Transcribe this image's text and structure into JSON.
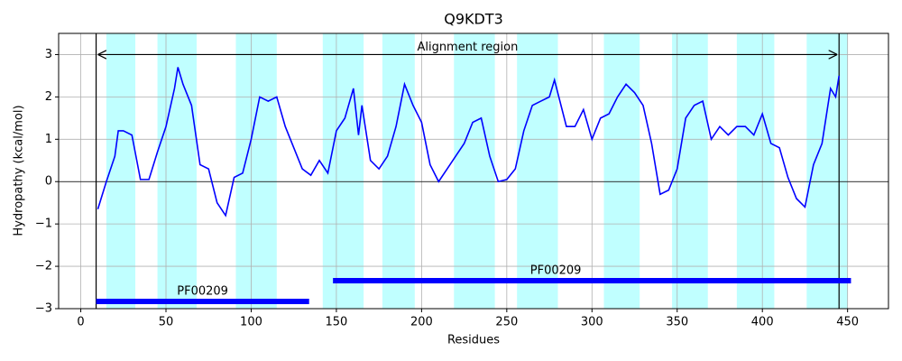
{
  "chart_data": {
    "type": "line",
    "title": "Q9KDT3",
    "x_label": "Residues",
    "y_label": "Hydropathy (kcal/mol)",
    "x": [
      10,
      15,
      20,
      22,
      25,
      30,
      35,
      40,
      45,
      50,
      55,
      57,
      60,
      65,
      70,
      75,
      80,
      85,
      90,
      95,
      100,
      105,
      110,
      115,
      120,
      125,
      130,
      135,
      140,
      145,
      150,
      155,
      160,
      163,
      165,
      170,
      175,
      180,
      185,
      190,
      195,
      200,
      205,
      210,
      215,
      220,
      225,
      230,
      235,
      240,
      245,
      250,
      255,
      260,
      265,
      270,
      275,
      278,
      285,
      290,
      295,
      300,
      305,
      310,
      315,
      320,
      325,
      330,
      335,
      340,
      345,
      350,
      355,
      360,
      365,
      370,
      375,
      380,
      385,
      390,
      395,
      400,
      405,
      410,
      415,
      420,
      425,
      430,
      435,
      440,
      443,
      445
    ],
    "series": [
      {
        "name": "Hydropathy",
        "color": "#0000ff",
        "values": [
          -0.65,
          0.0,
          0.6,
          1.2,
          1.2,
          1.1,
          0.05,
          0.05,
          0.7,
          1.3,
          2.2,
          2.7,
          2.3,
          1.8,
          0.4,
          0.3,
          -0.5,
          -0.8,
          0.1,
          0.2,
          1.0,
          2.0,
          1.9,
          2.0,
          1.3,
          0.8,
          0.3,
          0.15,
          0.5,
          0.2,
          1.2,
          1.5,
          2.2,
          1.1,
          1.8,
          0.5,
          0.3,
          0.6,
          1.3,
          2.3,
          1.8,
          1.4,
          0.4,
          0.0,
          0.3,
          0.6,
          0.9,
          1.4,
          1.5,
          0.6,
          0.0,
          0.05,
          0.3,
          1.2,
          1.8,
          1.9,
          2.0,
          2.4,
          1.3,
          1.3,
          1.7,
          1.0,
          1.5,
          1.6,
          2.0,
          2.3,
          2.1,
          1.8,
          0.9,
          -0.3,
          -0.2,
          0.3,
          1.5,
          1.8,
          1.9,
          1.0,
          1.3,
          1.1,
          1.3,
          1.3,
          1.1,
          1.6,
          0.9,
          0.8,
          0.1,
          -0.4,
          -0.6,
          0.4,
          0.9,
          2.2,
          2.0,
          2.5
        ]
      }
    ],
    "band_color": "#c0ffff",
    "bands": [
      [
        15,
        32
      ],
      [
        45,
        68
      ],
      [
        91,
        115
      ],
      [
        142,
        166
      ],
      [
        177,
        196
      ],
      [
        219,
        243
      ],
      [
        256,
        280
      ],
      [
        307,
        328
      ],
      [
        347,
        368
      ],
      [
        385,
        407
      ],
      [
        426,
        450
      ]
    ],
    "alignment": {
      "label": "Alignment region",
      "start": 9,
      "end": 445,
      "y": 3
    },
    "domains": [
      {
        "label": "PF00209",
        "start": 9,
        "end": 134,
        "y": -2.83
      },
      {
        "label": "PF00209",
        "start": 148,
        "end": 452,
        "y": -2.34
      }
    ],
    "domain_color": "#0000ff",
    "reference_line": 0,
    "xlim": [
      -13,
      474
    ],
    "ylim": [
      -3,
      3.5
    ],
    "xticks": [
      0,
      50,
      100,
      150,
      200,
      250,
      300,
      350,
      400,
      450
    ],
    "yticks": [
      {
        "value": -3,
        "label": "−3"
      },
      {
        "value": -2,
        "label": "−2"
      },
      {
        "value": -1,
        "label": "−1"
      },
      0,
      1,
      2,
      3
    ],
    "grid": true
  }
}
